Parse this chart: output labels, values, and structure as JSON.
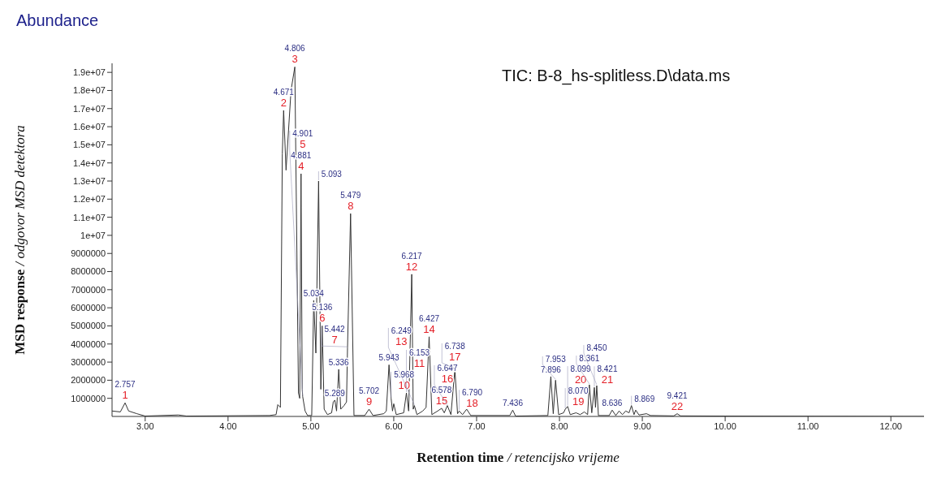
{
  "chart_data": {
    "type": "line",
    "title": "TIC: B-8_hs-splitless.D\\data.ms",
    "xlabel": "Retention time / retencijsko vrijeme",
    "ylabel": "MSD response / odgovor MSD detektora",
    "xlim": [
      2.6,
      12.4
    ],
    "xticks": [
      {
        "value": 3,
        "label": "3.00"
      },
      {
        "value": 4,
        "label": "4.00"
      },
      {
        "value": 5,
        "label": "5.00"
      },
      {
        "value": 6,
        "label": "6.00"
      },
      {
        "value": 7,
        "label": "7.00"
      },
      {
        "value": 8,
        "label": "8.00"
      },
      {
        "value": 9,
        "label": "9.00"
      },
      {
        "value": 10,
        "label": "10.00"
      },
      {
        "value": 11,
        "label": "11.00"
      },
      {
        "value": 12,
        "label": "12.00"
      }
    ],
    "ylim": [
      0,
      19500000
    ],
    "yticks": [
      1000000,
      2000000,
      3000000,
      4000000,
      5000000,
      6000000,
      7000000,
      8000000,
      9000000,
      {
        "value": 10000000,
        "label": "1e+07"
      },
      {
        "value": 11000000,
        "label": "1.1e+07"
      },
      {
        "value": 12000000,
        "label": "1.2e+07"
      },
      {
        "value": 13000000,
        "label": "1.3e+07"
      },
      {
        "value": 14000000,
        "label": "1.4e+07"
      },
      {
        "value": 15000000,
        "label": "1.5e+07"
      },
      {
        "value": 16000000,
        "label": "1.6e+07"
      },
      {
        "value": 17000000,
        "label": "1.7e+07"
      },
      {
        "value": 18000000,
        "label": "1.8e+07"
      },
      {
        "value": 19000000,
        "label": "1.9e+07"
      }
    ],
    "series": [
      {
        "color": "#333333",
        "x": [
          2.6,
          2.7,
          2.757,
          2.8,
          2.9,
          3.0,
          3.4,
          3.5,
          4.5,
          4.58,
          4.6,
          4.632,
          4.655,
          4.671,
          4.7,
          4.76,
          4.806,
          4.85,
          4.865,
          4.881,
          4.895,
          4.901,
          4.93,
          4.96,
          5.01,
          5.034,
          5.06,
          5.093,
          5.12,
          5.136,
          5.16,
          5.2,
          5.25,
          5.27,
          5.289,
          5.31,
          5.336,
          5.36,
          5.4,
          5.43,
          5.442,
          5.479,
          5.52,
          5.65,
          5.702,
          5.75,
          5.88,
          5.91,
          5.943,
          5.968,
          5.985,
          6.0,
          6.03,
          6.12,
          6.153,
          6.18,
          6.217,
          6.235,
          6.249,
          6.28,
          6.35,
          6.39,
          6.427,
          6.46,
          6.53,
          6.578,
          6.61,
          6.647,
          6.69,
          6.738,
          6.77,
          6.79,
          6.83,
          6.88,
          6.93,
          7.4,
          7.436,
          7.47,
          7.86,
          7.896,
          7.925,
          7.953,
          7.99,
          8.05,
          8.07,
          8.099,
          8.13,
          8.2,
          8.25,
          8.3,
          8.34,
          8.361,
          8.39,
          8.421,
          8.435,
          8.45,
          8.47,
          8.6,
          8.636,
          8.68,
          8.72,
          8.76,
          8.8,
          8.84,
          8.869,
          8.9,
          8.92,
          8.96,
          9.05,
          9.1,
          9.38,
          9.421,
          9.46,
          10.0,
          12.4
        ],
        "values": [
          300000,
          250000,
          750000,
          300000,
          150000,
          20000,
          80000,
          20000,
          50000,
          100000,
          650000,
          500000,
          14500000,
          16900000,
          13600000,
          18000000,
          19300000,
          1300000,
          1000000,
          13400000,
          1500000,
          1100000,
          300000,
          50000,
          50000,
          6400000,
          3500000,
          13000000,
          1500000,
          5000000,
          400000,
          100000,
          200000,
          800000,
          900000,
          300000,
          2600000,
          400000,
          600000,
          800000,
          3800000,
          11200000,
          50000,
          50000,
          400000,
          50000,
          150000,
          300000,
          2850000,
          1000000,
          300000,
          700000,
          100000,
          200000,
          1300000,
          300000,
          7850000,
          400000,
          600000,
          100000,
          300000,
          500000,
          4400000,
          100000,
          300000,
          450000,
          200000,
          600000,
          100000,
          2600000,
          150000,
          300000,
          100000,
          400000,
          50000,
          50000,
          350000,
          20000,
          50000,
          2200000,
          150000,
          2000000,
          100000,
          200000,
          400000,
          550000,
          100000,
          200000,
          100000,
          250000,
          100000,
          1750000,
          200000,
          1600000,
          500000,
          1700000,
          50000,
          50000,
          350000,
          50000,
          300000,
          100000,
          300000,
          200000,
          600000,
          100000,
          350000,
          80000,
          150000,
          50000,
          30000,
          150000,
          30000,
          20000,
          0
        ]
      }
    ],
    "annotations": [
      "Abundance",
      {
        "text": "2.757",
        "x": 2.757,
        "y": 750000
      },
      {
        "text": "1",
        "x": 2.757,
        "y": 750000
      },
      {
        "text": "4.671",
        "x": 4.671,
        "y": 16900000
      },
      {
        "text": "2",
        "x": 4.671,
        "y": 16900000
      },
      {
        "text": "4.806",
        "x": 4.806,
        "y": 19300000
      },
      {
        "text": "3",
        "x": 4.806,
        "y": 19300000
      },
      {
        "text": "4.881",
        "x": 4.881,
        "y": 13400000
      },
      {
        "text": "4",
        "x": 4.881,
        "y": 13400000
      },
      {
        "text": "4.901",
        "x": 4.901,
        "y": 1100000
      },
      {
        "text": "5",
        "x": 4.901,
        "y": 1100000
      },
      {
        "text": "5.034",
        "x": 5.034,
        "y": 6400000
      },
      {
        "text": "5.093",
        "x": 5.093,
        "y": 13000000
      },
      {
        "text": "5.136",
        "x": 5.136,
        "y": 5000000
      },
      {
        "text": "6",
        "x": 5.136,
        "y": 5000000
      },
      {
        "text": "5.289",
        "x": 5.289,
        "y": 900000
      },
      {
        "text": "5.336",
        "x": 5.336,
        "y": 2600000
      },
      {
        "text": "5.442",
        "x": 5.442,
        "y": 3800000
      },
      {
        "text": "7",
        "x": 5.442,
        "y": 3800000
      },
      {
        "text": "5.479",
        "x": 5.479,
        "y": 11200000
      },
      {
        "text": "8",
        "x": 5.479,
        "y": 11200000
      },
      {
        "text": "5.702",
        "x": 5.702,
        "y": 400000
      },
      {
        "text": "9",
        "x": 5.702,
        "y": 400000
      },
      {
        "text": "5.943",
        "x": 5.943,
        "y": 2850000
      },
      {
        "text": "5.968",
        "x": 5.968,
        "y": 1000000
      },
      {
        "text": "10",
        "x": 5.968,
        "y": 1000000
      },
      {
        "text": "6.153",
        "x": 6.153,
        "y": 1300000
      },
      {
        "text": "11",
        "x": 6.153,
        "y": 1300000
      },
      {
        "text": "6.217",
        "x": 6.217,
        "y": 7850000
      },
      {
        "text": "12",
        "x": 6.217,
        "y": 7850000
      },
      {
        "text": "6.249",
        "x": 6.249,
        "y": 600000
      },
      {
        "text": "13",
        "x": 6.249,
        "y": 600000
      },
      {
        "text": "6.427",
        "x": 6.427,
        "y": 4400000
      },
      {
        "text": "14",
        "x": 6.427,
        "y": 4400000
      },
      {
        "text": "6.578",
        "x": 6.578,
        "y": 450000
      },
      {
        "text": "15",
        "x": 6.578,
        "y": 450000
      },
      {
        "text": "6.647",
        "x": 6.647,
        "y": 600000
      },
      {
        "text": "16",
        "x": 6.647,
        "y": 600000
      },
      {
        "text": "6.738",
        "x": 6.738,
        "y": 2600000
      },
      {
        "text": "17",
        "x": 6.738,
        "y": 2600000
      },
      {
        "text": "6.790",
        "x": 6.79,
        "y": 300000
      },
      {
        "text": "18",
        "x": 6.79,
        "y": 300000
      },
      {
        "text": "7.436",
        "x": 7.436,
        "y": 350000
      },
      {
        "text": "7.896",
        "x": 7.896,
        "y": 2200000
      },
      {
        "text": "7.953",
        "x": 7.953,
        "y": 2000000
      },
      {
        "text": "8.070",
        "x": 8.07,
        "y": 400000
      },
      {
        "text": "19",
        "x": 8.07,
        "y": 400000
      },
      {
        "text": "8.099",
        "x": 8.099,
        "y": 550000
      },
      {
        "text": "20",
        "x": 8.099,
        "y": 550000
      },
      {
        "text": "8.361",
        "x": 8.361,
        "y": 1750000
      },
      {
        "text": "8.421",
        "x": 8.421,
        "y": 1600000
      },
      {
        "text": "21",
        "x": 8.421,
        "y": 1600000
      },
      {
        "text": "8.450",
        "x": 8.45,
        "y": 1700000
      },
      {
        "text": "8.636",
        "x": 8.636,
        "y": 350000
      },
      {
        "text": "8.869",
        "x": 8.869,
        "y": 600000
      },
      {
        "text": "9.421",
        "x": 9.421,
        "y": 150000
      },
      {
        "text": "22",
        "x": 9.421,
        "y": 150000
      }
    ]
  }
}
